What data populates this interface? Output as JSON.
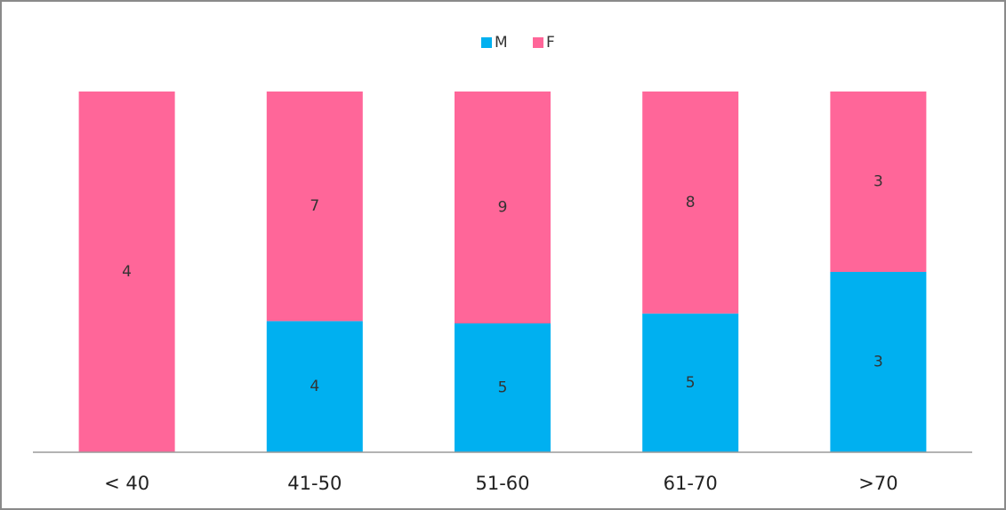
{
  "chart_data": {
    "type": "bar",
    "stacked": "percent",
    "categories": [
      "< 40",
      "41-50",
      "51-60",
      "61-70",
      ">70"
    ],
    "series": [
      {
        "name": "M",
        "color": "#00b0f0",
        "values": [
          0,
          4,
          5,
          5,
          3
        ]
      },
      {
        "name": "F",
        "color": "#ff6699",
        "values": [
          4,
          7,
          9,
          8,
          3
        ]
      }
    ],
    "legend": "top"
  }
}
